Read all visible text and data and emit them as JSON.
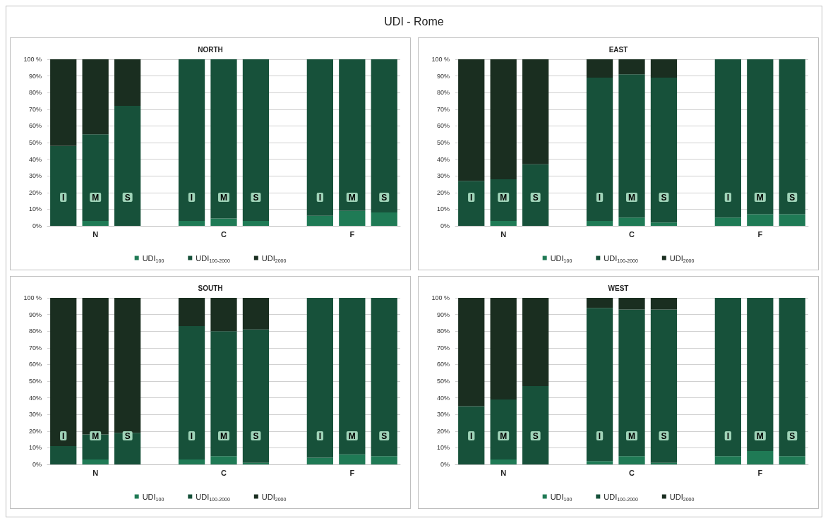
{
  "chart_data": [
    {
      "type": "bar",
      "title": "UDI - Rome",
      "subtitle": "NORTH",
      "stacked": true,
      "categories": [
        "I",
        "M",
        "S",
        null,
        "I",
        "M",
        "S",
        null,
        "I",
        "M",
        "S"
      ],
      "annotations": [
        "N",
        "C",
        "F"
      ],
      "ylim": [
        0,
        100
      ],
      "yticks": [
        {
          "value": 0,
          "label": "0%"
        },
        {
          "value": 10,
          "label": "10%"
        },
        {
          "value": 20,
          "label": "20%"
        },
        {
          "value": 30,
          "label": "30%"
        },
        {
          "value": 40,
          "label": "40%"
        },
        {
          "value": 50,
          "label": "50%"
        },
        {
          "value": 60,
          "label": "60%"
        },
        {
          "value": 70,
          "label": "70%"
        },
        {
          "value": 80,
          "label": "80%"
        },
        {
          "value": 90,
          "label": "90%"
        },
        {
          "value": 100,
          "label": "100 %"
        }
      ],
      "grid": "y",
      "legend": "bottom",
      "series": [
        {
          "name": "UDI$_{100}$",
          "color": "#1f7a55",
          "values": [
            0,
            3,
            0,
            null,
            3,
            4.5,
            3,
            null,
            6,
            9,
            8
          ]
        },
        {
          "name": "UDI$_{100-2000}$",
          "color": "#17513a",
          "values": [
            48,
            52,
            72,
            null,
            97,
            95.5,
            97,
            null,
            94,
            91,
            92
          ]
        },
        {
          "name": "UDI$_{2000}$",
          "color": "#1a2e20",
          "values": [
            52,
            45,
            28,
            null,
            0,
            0,
            0,
            null,
            0,
            0,
            0
          ]
        }
      ]
    },
    {
      "type": "bar",
      "subtitle": "EAST",
      "stacked": true,
      "categories": [
        "I",
        "M",
        "S",
        null,
        "I",
        "M",
        "S",
        null,
        "I",
        "M",
        "S"
      ],
      "annotations": [
        "N",
        "C",
        "F"
      ],
      "ylim": [
        0,
        100
      ],
      "yticks": [
        {
          "value": 0,
          "label": "0%"
        },
        {
          "value": 10,
          "label": "10%"
        },
        {
          "value": 20,
          "label": "20%"
        },
        {
          "value": 30,
          "label": "30%"
        },
        {
          "value": 40,
          "label": "40%"
        },
        {
          "value": 50,
          "label": "50%"
        },
        {
          "value": 60,
          "label": "60%"
        },
        {
          "value": 70,
          "label": "70%"
        },
        {
          "value": 80,
          "label": "80%"
        },
        {
          "value": 90,
          "label": "90%"
        },
        {
          "value": 100,
          "label": "100 %"
        }
      ],
      "grid": "y",
      "legend": "bottom",
      "series": [
        {
          "name": "UDI$_{100}$",
          "color": "#1f7a55",
          "values": [
            0,
            3,
            0,
            null,
            3,
            5,
            2,
            null,
            5,
            7,
            7
          ]
        },
        {
          "name": "UDI$_{100-2000}$",
          "color": "#17513a",
          "values": [
            27,
            25,
            37,
            null,
            86,
            86,
            87,
            null,
            95,
            93,
            93
          ]
        },
        {
          "name": "UDI$_{2000}$",
          "color": "#1a2e20",
          "values": [
            73,
            72,
            63,
            null,
            11,
            9,
            11,
            null,
            0,
            0,
            0
          ]
        }
      ]
    },
    {
      "type": "bar",
      "subtitle": "SOUTH",
      "stacked": true,
      "categories": [
        "I",
        "M",
        "S",
        null,
        "I",
        "M",
        "S",
        null,
        "I",
        "M",
        "S"
      ],
      "annotations": [
        "N",
        "C",
        "F"
      ],
      "ylim": [
        0,
        100
      ],
      "yticks": [
        {
          "value": 0,
          "label": "0%"
        },
        {
          "value": 10,
          "label": "10%"
        },
        {
          "value": 20,
          "label": "20%"
        },
        {
          "value": 30,
          "label": "30%"
        },
        {
          "value": 40,
          "label": "40%"
        },
        {
          "value": 50,
          "label": "50%"
        },
        {
          "value": 60,
          "label": "60%"
        },
        {
          "value": 70,
          "label": "70%"
        },
        {
          "value": 80,
          "label": "80%"
        },
        {
          "value": 90,
          "label": "90%"
        },
        {
          "value": 100,
          "label": "100 %"
        }
      ],
      "grid": "y",
      "legend": "bottom",
      "series": [
        {
          "name": "UDI$_{100}$",
          "color": "#1f7a55",
          "values": [
            0,
            3,
            0,
            null,
            3,
            5,
            1,
            null,
            4,
            6,
            5
          ]
        },
        {
          "name": "UDI$_{100-2000}$",
          "color": "#17513a",
          "values": [
            11,
            15,
            19,
            null,
            80,
            75,
            80,
            null,
            96,
            94,
            95
          ]
        },
        {
          "name": "UDI$_{2000}$",
          "color": "#1a2e20",
          "values": [
            89,
            82,
            81,
            null,
            17,
            20,
            19,
            null,
            0,
            0,
            0
          ]
        }
      ]
    },
    {
      "type": "bar",
      "subtitle": "WEST",
      "stacked": true,
      "categories": [
        "I",
        "M",
        "S",
        null,
        "I",
        "M",
        "S",
        null,
        "I",
        "M",
        "S"
      ],
      "annotations": [
        "N",
        "C",
        "F"
      ],
      "ylim": [
        0,
        100
      ],
      "yticks": [
        {
          "value": 0,
          "label": "0%"
        },
        {
          "value": 10,
          "label": "10%"
        },
        {
          "value": 20,
          "label": "20%"
        },
        {
          "value": 30,
          "label": "30%"
        },
        {
          "value": 40,
          "label": "40%"
        },
        {
          "value": 50,
          "label": "50%"
        },
        {
          "value": 60,
          "label": "60%"
        },
        {
          "value": 70,
          "label": "70%"
        },
        {
          "value": 80,
          "label": "80%"
        },
        {
          "value": 90,
          "label": "90%"
        },
        {
          "value": 100,
          "label": "100 %"
        }
      ],
      "grid": "y",
      "legend": "bottom",
      "series": [
        {
          "name": "UDI$_{100}$",
          "color": "#1f7a55",
          "values": [
            0,
            3,
            0,
            null,
            2,
            5,
            1,
            null,
            5,
            8,
            5
          ]
        },
        {
          "name": "UDI$_{100-2000}$",
          "color": "#17513a",
          "values": [
            35,
            36,
            47,
            null,
            92,
            88,
            92,
            null,
            95,
            92,
            95
          ]
        },
        {
          "name": "UDI$_{2000}$",
          "color": "#1a2e20",
          "values": [
            65,
            61,
            53,
            null,
            6,
            7,
            7,
            null,
            0,
            0,
            0
          ]
        }
      ]
    }
  ]
}
